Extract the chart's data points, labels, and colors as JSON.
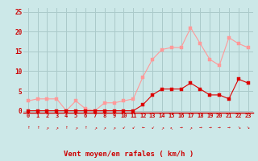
{
  "x": [
    0,
    1,
    2,
    3,
    4,
    5,
    6,
    7,
    8,
    9,
    10,
    11,
    12,
    13,
    14,
    15,
    16,
    17,
    18,
    19,
    20,
    21,
    22,
    23
  ],
  "y_mean": [
    0,
    0,
    0,
    0,
    0,
    0,
    0,
    0,
    0,
    0,
    0,
    0,
    1.5,
    4,
    5.5,
    5.5,
    5.5,
    7,
    5.5,
    4,
    4,
    3,
    8,
    7
  ],
  "y_gust": [
    2.5,
    3,
    3,
    3,
    0,
    2.5,
    0.5,
    0,
    2,
    2,
    2.5,
    3,
    8.5,
    13,
    15.5,
    16,
    16,
    21,
    17,
    13,
    11.5,
    18.5,
    17,
    16
  ],
  "color_mean": "#dd0000",
  "color_gust": "#ff9999",
  "bg_color": "#cce8e8",
  "grid_color": "#aacaca",
  "xlabel": "Vent moyen/en rafales ( km/h )",
  "xlabel_color": "#cc0000",
  "tick_color": "#cc0000",
  "arrow_color": "#cc0000",
  "ylim": [
    -0.5,
    26
  ],
  "yticks": [
    0,
    5,
    10,
    15,
    20,
    25
  ],
  "xlim": [
    -0.5,
    23.5
  ],
  "arrows": [
    "↑",
    "↑",
    "↗",
    "↗",
    "↑",
    "↗",
    "↑",
    "↗",
    "↗",
    "↗",
    "↙",
    "↙",
    "←",
    "↙",
    "↗",
    "↖",
    "→",
    "↗",
    "→",
    "→",
    "→",
    "→",
    "↘",
    "↘"
  ]
}
